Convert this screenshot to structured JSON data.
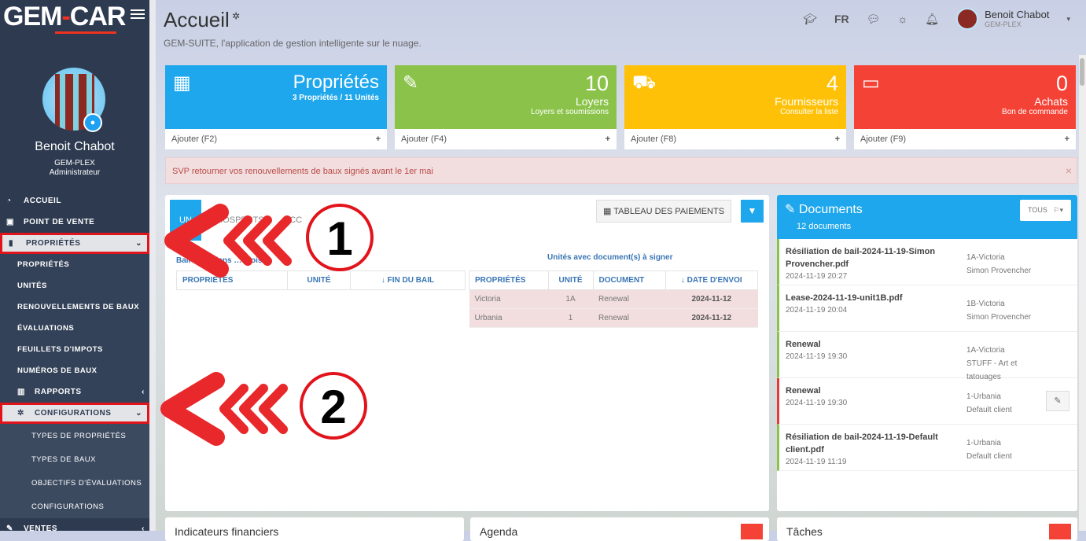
{
  "sidebar": {
    "logo": {
      "left": "GEM",
      "dash": "-",
      "right": "CAR"
    },
    "user_name": "Benoit Chabot",
    "org": "GEM-PLEX",
    "role": "Administrateur",
    "menu": [
      {
        "label": "ACCUEIL",
        "icon": "dashboard-icon"
      },
      {
        "label": "POINT DE VENTE",
        "icon": "money-icon"
      },
      {
        "label": "PROPRIÉTÉS",
        "icon": "building-icon"
      }
    ],
    "proprietes_sub": [
      "PROPRIÉTÉS",
      "UNITÉS",
      "RENOUVELLEMENTS DE BAUX",
      "ÉVALUATIONS",
      "FEUILLETS D'IMPOTS",
      "NUMÉROS DE BAUX"
    ],
    "rapports": "RAPPORTS",
    "configurations": "CONFIGURATIONS",
    "config_sub": [
      "TYPES DE PROPRIÉTÉS",
      "TYPES DE BAUX",
      "OBJECTIFS D'ÉVALUATIONS",
      "CONFIGURATIONS"
    ],
    "ventes": "VENTES"
  },
  "header": {
    "title": "Accueil",
    "subtitle": "GEM-SUITE, l'application de gestion intelligente sur le nuage.",
    "lang": "FR",
    "user_name": "Benoit Chabot",
    "user_org": "GEM-PLEX"
  },
  "cards": [
    {
      "value": "",
      "label": "Propriétés",
      "sub": "3 Propriétés / 11 Unités",
      "footer": "Ajouter (F2)",
      "color": "#1ea7ec",
      "icon": "building-icon"
    },
    {
      "value": "10",
      "label": "Loyers",
      "sub": "Loyers et soumissions",
      "footer": "Ajouter (F4)",
      "color": "#8bc34a",
      "icon": "edit-icon"
    },
    {
      "value": "4",
      "label": "Fournisseurs",
      "sub": "Consulter la liste",
      "footer": "Ajouter (F8)",
      "color": "#ffc107",
      "icon": "truck-icon"
    },
    {
      "value": "0",
      "label": "Achats",
      "sub": "Bon de commande",
      "footer": "Ajouter (F9)",
      "color": "#f44336",
      "icon": "credit-card-icon"
    }
  ],
  "alert": "SVP retourner vos renouvellements de baux signés avant le 1er mai",
  "leases": {
    "tabs": [
      "UN",
      "PROSPECTS",
      "OCC"
    ],
    "payments_btn": "TABLEAU DES PAIEMENTS",
    "left_caption": "Bail échu dans … mois",
    "left_headers": [
      "PROPRIÉTÉS",
      "UNITÉ",
      "↓ FIN DU BAIL"
    ],
    "right_caption": "Unités avec document(s) à signer",
    "right_headers": [
      "PROPRIÉTÉS",
      "UNITÉ",
      "DOCUMENT",
      "↓ DATE D'ENVOI"
    ],
    "right_rows": [
      [
        "Victoria",
        "1A",
        "Renewal",
        "2024-11-12"
      ],
      [
        "Urbania",
        "1",
        "Renewal",
        "2024-11-12"
      ]
    ]
  },
  "documents": {
    "title": "Documents",
    "count": "12 documents",
    "filter": "TOUS",
    "items": [
      {
        "name": "Résiliation de bail-2024-11-19-Simon Provencher.pdf",
        "date": "2024-11-19 20:27",
        "unit": "1A-Victoria",
        "client": "Simon Provencher",
        "status": "green"
      },
      {
        "name": "Lease-2024-11-19-unit1B.pdf",
        "date": "2024-11-19 20:04",
        "unit": "1B-Victoria",
        "client": "Simon Provencher",
        "status": "green"
      },
      {
        "name": "Renewal",
        "date": "2024-11-19 19:30",
        "unit": "1A-Victoria",
        "client": "STUFF - Art et tatouages",
        "status": "green"
      },
      {
        "name": "Renewal",
        "date": "2024-11-19 19:30",
        "unit": "1-Urbania",
        "client": "Default client",
        "status": "red"
      },
      {
        "name": "Résiliation de bail-2024-11-19-Default client.pdf",
        "date": "2024-11-19 11:19",
        "unit": "1-Urbania",
        "client": "Default client",
        "status": "green"
      }
    ]
  },
  "bottom_panels": [
    "Indicateurs financiers",
    "Agenda",
    "Tâches"
  ],
  "annotations": [
    "1",
    "2"
  ]
}
